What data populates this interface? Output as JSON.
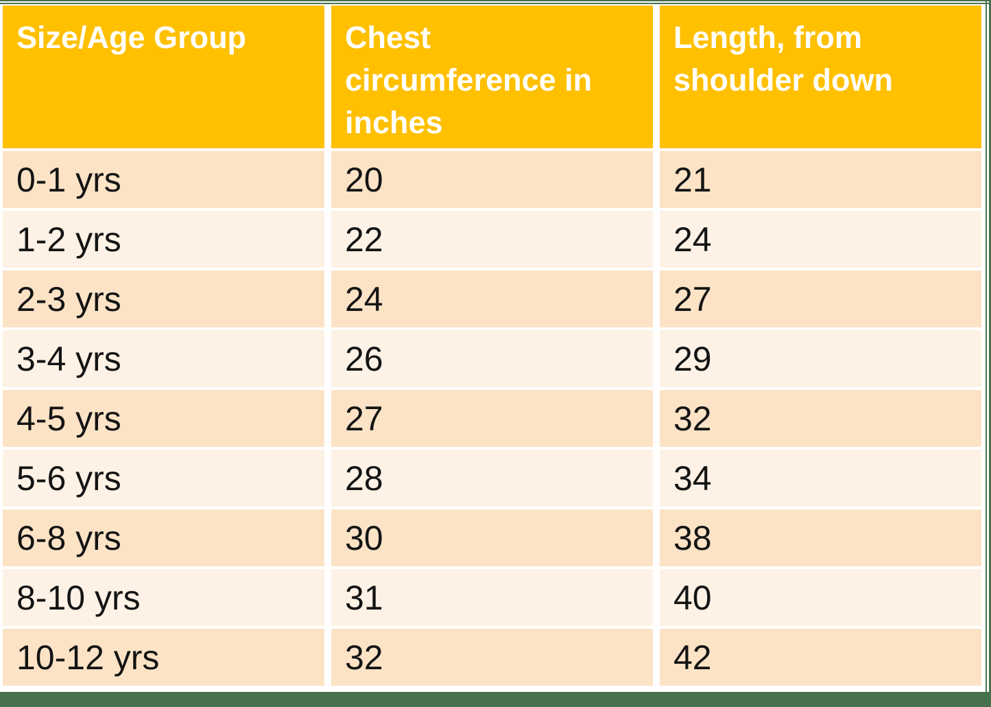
{
  "colors": {
    "header-bg": "#FFC000",
    "header-text": "#FFFFFF",
    "row-dark": "#FCE3C6",
    "row-light": "#FDF2E5",
    "cell-text": "#141414",
    "frame-green": "#47704D",
    "page-bg": "#FFFFFF"
  },
  "table": {
    "columns": [
      {
        "label": "Size/Age Group"
      },
      {
        "label": "Chest circumference in inches"
      },
      {
        "label": "Length, from shoulder down"
      }
    ],
    "rows": [
      {
        "age": "0-1 yrs",
        "chest": "20",
        "length": "21"
      },
      {
        "age": "1-2 yrs",
        "chest": "22",
        "length": "24"
      },
      {
        "age": "2-3 yrs",
        "chest": "24",
        "length": "27"
      },
      {
        "age": "3-4 yrs",
        "chest": "26",
        "length": "29"
      },
      {
        "age": "4-5 yrs",
        "chest": "27",
        "length": "32"
      },
      {
        "age": "5-6 yrs",
        "chest": "28",
        "length": "34"
      },
      {
        "age": "6-8 yrs",
        "chest": "30",
        "length": "38"
      },
      {
        "age": "8-10 yrs",
        "chest": "31",
        "length": "40"
      },
      {
        "age": "10-12 yrs",
        "chest": "32",
        "length": "42"
      }
    ]
  }
}
